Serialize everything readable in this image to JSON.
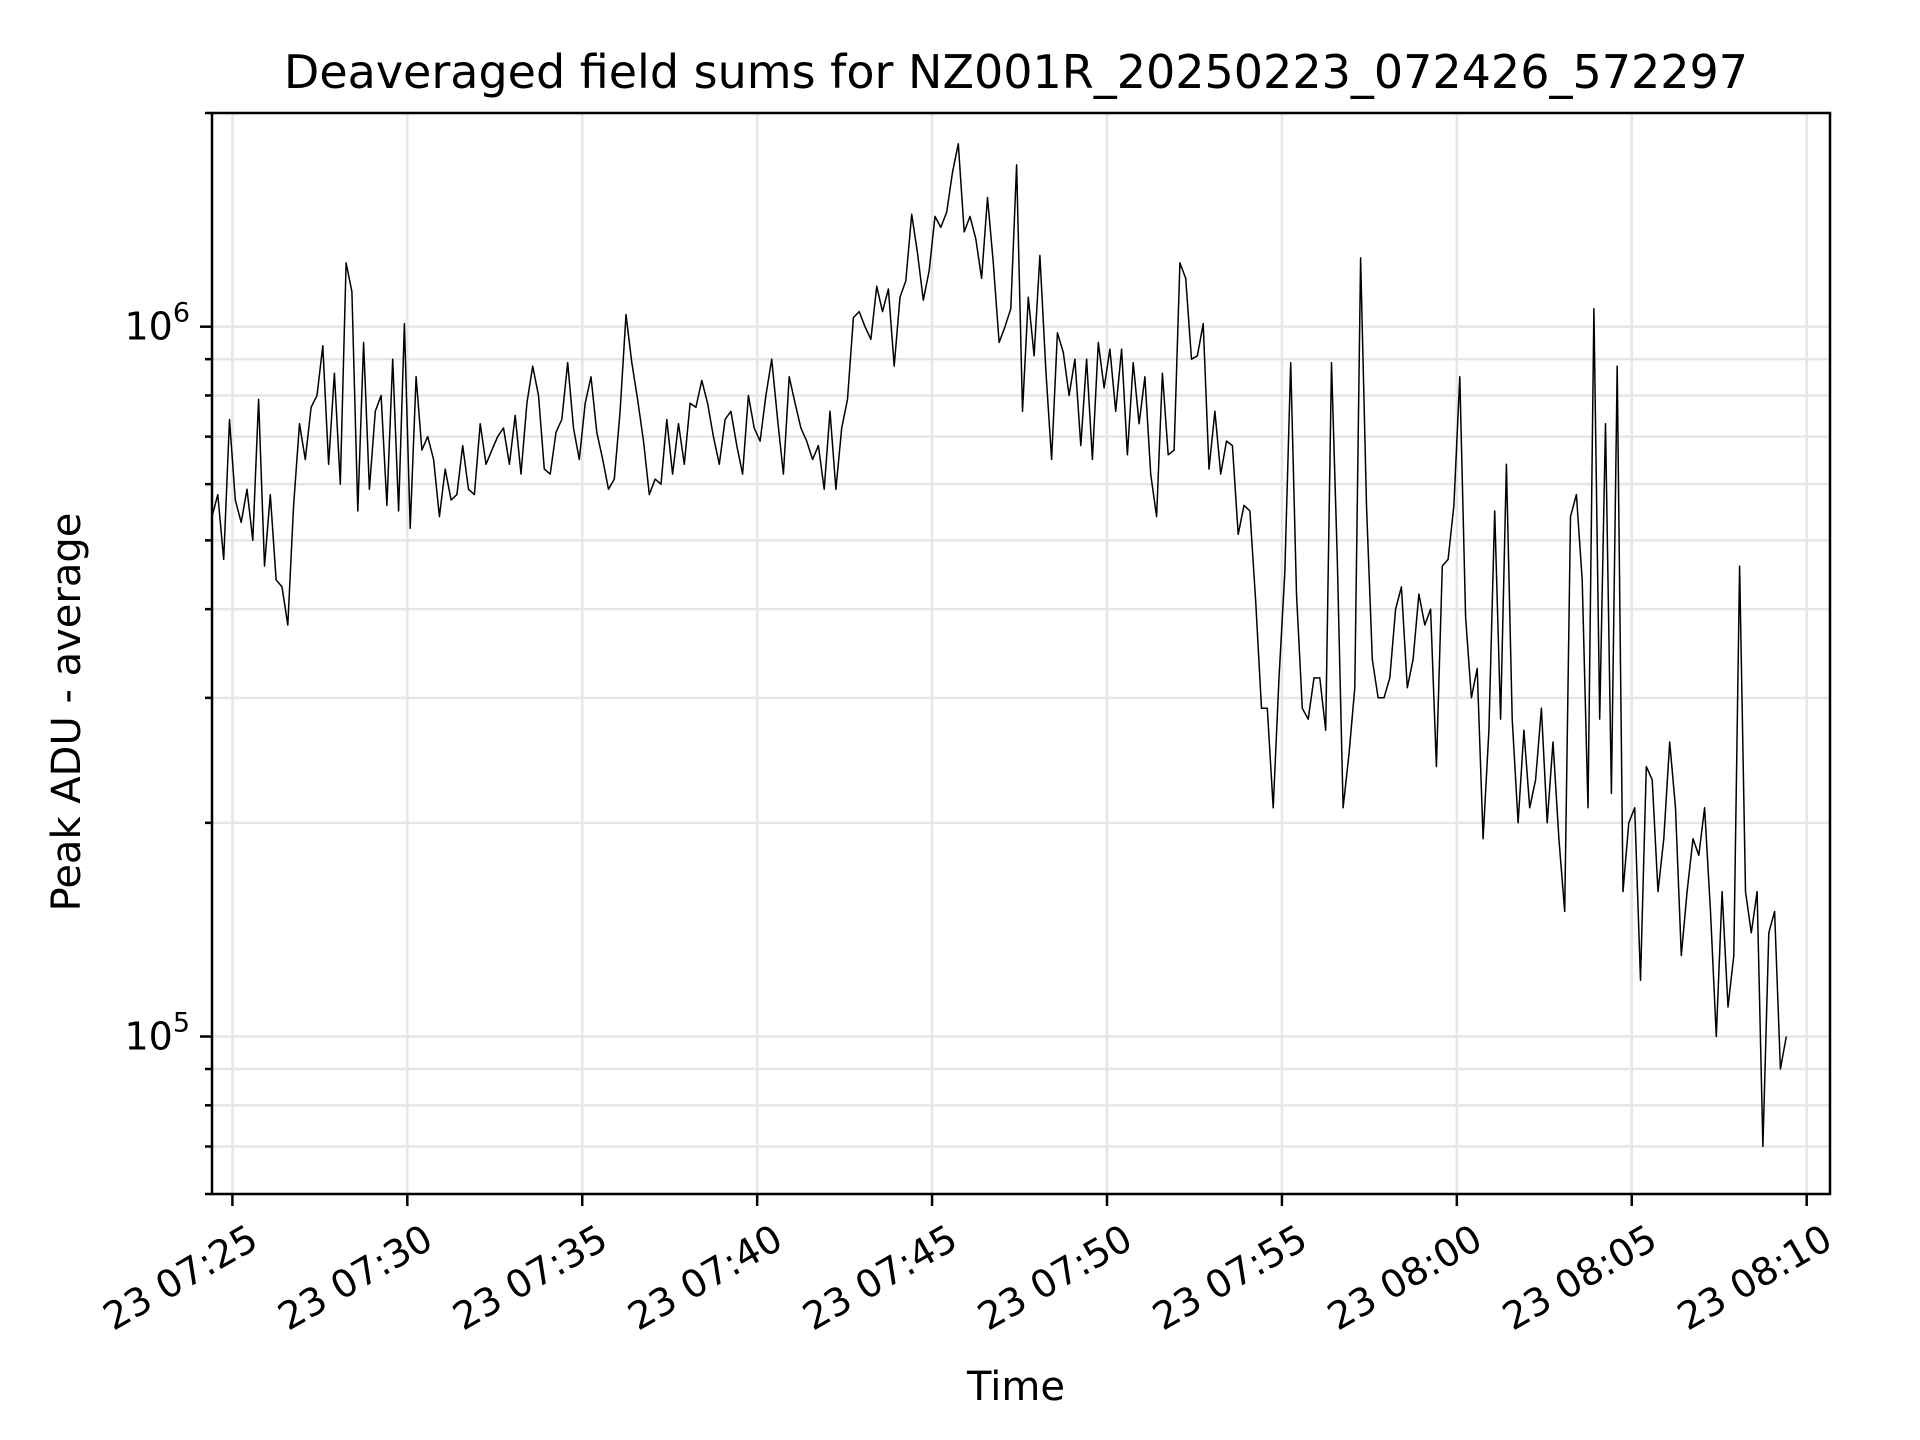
{
  "chart_data": {
    "type": "line",
    "title": "Deaveraged field sums for NZ001R_20250223_072426_572297",
    "xlabel": "Time",
    "ylabel": "Peak ADU - average",
    "y_scale": "log",
    "grid": true,
    "ylim": [
      60000,
      2000000
    ],
    "xlim": [
      "2025-02-23 07:24:25",
      "2025-02-23 08:10:40"
    ],
    "x_ticks": [
      "2025-02-23 07:25",
      "2025-02-23 07:30",
      "2025-02-23 07:35",
      "2025-02-23 07:40",
      "2025-02-23 07:45",
      "2025-02-23 07:50",
      "2025-02-23 07:55",
      "2025-02-23 08:00",
      "2025-02-23 08:05",
      "2025-02-23 08:10"
    ],
    "x_tick_labels": [
      "23 07:25",
      "23 07:30",
      "23 07:35",
      "23 07:40",
      "23 07:45",
      "23 07:50",
      "23 07:55",
      "23 08:00",
      "23 08:05",
      "23 08:10"
    ],
    "y_tick_labels": [
      {
        "value": 100000,
        "base": "10",
        "exp": "5"
      },
      {
        "value": 1000000,
        "base": "10",
        "exp": "6"
      }
    ],
    "series": [
      {
        "color": "#000000",
        "points": [
          [
            "07:24:25",
            540000
          ],
          [
            "07:24:35",
            580000
          ],
          [
            "07:24:45",
            470000
          ],
          [
            "07:24:55",
            740000
          ],
          [
            "07:25:05",
            570000
          ],
          [
            "07:25:15",
            530000
          ],
          [
            "07:25:25",
            590000
          ],
          [
            "07:25:35",
            500000
          ],
          [
            "07:25:45",
            790000
          ],
          [
            "07:25:55",
            460000
          ],
          [
            "07:26:05",
            580000
          ],
          [
            "07:26:15",
            440000
          ],
          [
            "07:26:25",
            430000
          ],
          [
            "07:26:35",
            380000
          ],
          [
            "07:26:45",
            560000
          ],
          [
            "07:26:55",
            730000
          ],
          [
            "07:27:05",
            650000
          ],
          [
            "07:27:15",
            770000
          ],
          [
            "07:27:25",
            800000
          ],
          [
            "07:27:35",
            940000
          ],
          [
            "07:27:45",
            640000
          ],
          [
            "07:27:55",
            860000
          ],
          [
            "07:28:05",
            600000
          ],
          [
            "07:28:15",
            1230000
          ],
          [
            "07:28:25",
            1120000
          ],
          [
            "07:28:35",
            550000
          ],
          [
            "07:28:45",
            950000
          ],
          [
            "07:28:55",
            590000
          ],
          [
            "07:29:05",
            760000
          ],
          [
            "07:29:15",
            800000
          ],
          [
            "07:29:25",
            560000
          ],
          [
            "07:29:35",
            900000
          ],
          [
            "07:29:45",
            550000
          ],
          [
            "07:29:55",
            1010000
          ],
          [
            "07:30:05",
            520000
          ],
          [
            "07:30:15",
            850000
          ],
          [
            "07:30:25",
            670000
          ],
          [
            "07:30:35",
            700000
          ],
          [
            "07:30:45",
            650000
          ],
          [
            "07:30:55",
            540000
          ],
          [
            "07:31:05",
            630000
          ],
          [
            "07:31:15",
            570000
          ],
          [
            "07:31:25",
            580000
          ],
          [
            "07:31:35",
            680000
          ],
          [
            "07:31:45",
            590000
          ],
          [
            "07:31:55",
            580000
          ],
          [
            "07:32:05",
            730000
          ],
          [
            "07:32:15",
            640000
          ],
          [
            "07:32:25",
            670000
          ],
          [
            "07:32:35",
            700000
          ],
          [
            "07:32:45",
            720000
          ],
          [
            "07:32:55",
            640000
          ],
          [
            "07:33:05",
            750000
          ],
          [
            "07:33:15",
            620000
          ],
          [
            "07:33:25",
            780000
          ],
          [
            "07:33:35",
            880000
          ],
          [
            "07:33:45",
            800000
          ],
          [
            "07:33:55",
            630000
          ],
          [
            "07:34:05",
            620000
          ],
          [
            "07:34:15",
            710000
          ],
          [
            "07:34:25",
            740000
          ],
          [
            "07:34:35",
            890000
          ],
          [
            "07:34:45",
            720000
          ],
          [
            "07:34:55",
            650000
          ],
          [
            "07:35:05",
            780000
          ],
          [
            "07:35:15",
            850000
          ],
          [
            "07:35:25",
            710000
          ],
          [
            "07:35:35",
            650000
          ],
          [
            "07:35:45",
            590000
          ],
          [
            "07:35:55",
            610000
          ],
          [
            "07:36:05",
            760000
          ],
          [
            "07:36:15",
            1040000
          ],
          [
            "07:36:25",
            890000
          ],
          [
            "07:36:35",
            790000
          ],
          [
            "07:36:45",
            690000
          ],
          [
            "07:36:55",
            580000
          ],
          [
            "07:37:05",
            610000
          ],
          [
            "07:37:15",
            600000
          ],
          [
            "07:37:25",
            740000
          ],
          [
            "07:37:35",
            620000
          ],
          [
            "07:37:45",
            730000
          ],
          [
            "07:37:55",
            640000
          ],
          [
            "07:38:05",
            780000
          ],
          [
            "07:38:15",
            770000
          ],
          [
            "07:38:25",
            840000
          ],
          [
            "07:38:35",
            780000
          ],
          [
            "07:38:45",
            700000
          ],
          [
            "07:38:55",
            640000
          ],
          [
            "07:39:05",
            740000
          ],
          [
            "07:39:15",
            760000
          ],
          [
            "07:39:25",
            680000
          ],
          [
            "07:39:35",
            620000
          ],
          [
            "07:39:45",
            800000
          ],
          [
            "07:39:55",
            720000
          ],
          [
            "07:40:05",
            690000
          ],
          [
            "07:40:15",
            800000
          ],
          [
            "07:40:25",
            900000
          ],
          [
            "07:40:35",
            740000
          ],
          [
            "07:40:45",
            620000
          ],
          [
            "07:40:55",
            850000
          ],
          [
            "07:41:05",
            780000
          ],
          [
            "07:41:15",
            720000
          ],
          [
            "07:41:25",
            690000
          ],
          [
            "07:41:35",
            650000
          ],
          [
            "07:41:45",
            680000
          ],
          [
            "07:41:55",
            590000
          ],
          [
            "07:42:05",
            760000
          ],
          [
            "07:42:15",
            590000
          ],
          [
            "07:42:25",
            720000
          ],
          [
            "07:42:35",
            790000
          ],
          [
            "07:42:45",
            1030000
          ],
          [
            "07:42:55",
            1050000
          ],
          [
            "07:43:05",
            1000000
          ],
          [
            "07:43:15",
            960000
          ],
          [
            "07:43:25",
            1140000
          ],
          [
            "07:43:35",
            1050000
          ],
          [
            "07:43:45",
            1130000
          ],
          [
            "07:43:55",
            880000
          ],
          [
            "07:44:05",
            1100000
          ],
          [
            "07:44:15",
            1160000
          ],
          [
            "07:44:25",
            1440000
          ],
          [
            "07:44:35",
            1270000
          ],
          [
            "07:44:45",
            1090000
          ],
          [
            "07:44:55",
            1200000
          ],
          [
            "07:45:05",
            1430000
          ],
          [
            "07:45:15",
            1380000
          ],
          [
            "07:45:25",
            1450000
          ],
          [
            "07:45:35",
            1650000
          ],
          [
            "07:45:45",
            1810000
          ],
          [
            "07:45:55",
            1360000
          ],
          [
            "07:46:05",
            1430000
          ],
          [
            "07:46:15",
            1330000
          ],
          [
            "07:46:25",
            1170000
          ],
          [
            "07:46:35",
            1520000
          ],
          [
            "07:46:45",
            1230000
          ],
          [
            "07:46:55",
            950000
          ],
          [
            "07:47:05",
            1000000
          ],
          [
            "07:47:15",
            1060000
          ],
          [
            "07:47:25",
            1690000
          ],
          [
            "07:47:35",
            760000
          ],
          [
            "07:47:45",
            1100000
          ],
          [
            "07:47:55",
            910000
          ],
          [
            "07:48:05",
            1260000
          ],
          [
            "07:48:15",
            870000
          ],
          [
            "07:48:25",
            650000
          ],
          [
            "07:48:35",
            980000
          ],
          [
            "07:48:45",
            920000
          ],
          [
            "07:48:55",
            800000
          ],
          [
            "07:49:05",
            900000
          ],
          [
            "07:49:15",
            680000
          ],
          [
            "07:49:25",
            900000
          ],
          [
            "07:49:35",
            650000
          ],
          [
            "07:49:45",
            950000
          ],
          [
            "07:49:55",
            820000
          ],
          [
            "07:50:05",
            930000
          ],
          [
            "07:50:15",
            760000
          ],
          [
            "07:50:25",
            930000
          ],
          [
            "07:50:35",
            660000
          ],
          [
            "07:50:45",
            890000
          ],
          [
            "07:50:55",
            730000
          ],
          [
            "07:51:05",
            850000
          ],
          [
            "07:51:15",
            620000
          ],
          [
            "07:51:25",
            540000
          ],
          [
            "07:51:35",
            860000
          ],
          [
            "07:51:45",
            660000
          ],
          [
            "07:51:55",
            670000
          ],
          [
            "07:52:05",
            1230000
          ],
          [
            "07:52:15",
            1170000
          ],
          [
            "07:52:25",
            900000
          ],
          [
            "07:52:35",
            910000
          ],
          [
            "07:52:45",
            1010000
          ],
          [
            "07:52:55",
            630000
          ],
          [
            "07:53:05",
            760000
          ],
          [
            "07:53:15",
            620000
          ],
          [
            "07:53:25",
            690000
          ],
          [
            "07:53:35",
            680000
          ],
          [
            "07:53:45",
            510000
          ],
          [
            "07:53:55",
            560000
          ],
          [
            "07:54:05",
            550000
          ],
          [
            "07:54:15",
            410000
          ],
          [
            "07:54:25",
            290000
          ],
          [
            "07:54:35",
            290000
          ],
          [
            "07:54:45",
            210000
          ],
          [
            "07:54:55",
            320000
          ],
          [
            "07:55:05",
            450000
          ],
          [
            "07:55:15",
            890000
          ],
          [
            "07:55:25",
            420000
          ],
          [
            "07:55:35",
            290000
          ],
          [
            "07:55:45",
            280000
          ],
          [
            "07:55:55",
            320000
          ],
          [
            "07:56:05",
            320000
          ],
          [
            "07:56:15",
            270000
          ],
          [
            "07:56:25",
            890000
          ],
          [
            "07:56:35",
            470000
          ],
          [
            "07:56:45",
            210000
          ],
          [
            "07:56:55",
            250000
          ],
          [
            "07:57:05",
            310000
          ],
          [
            "07:57:15",
            1250000
          ],
          [
            "07:57:25",
            560000
          ],
          [
            "07:57:35",
            340000
          ],
          [
            "07:57:45",
            300000
          ],
          [
            "07:57:55",
            300000
          ],
          [
            "07:58:05",
            320000
          ],
          [
            "07:58:15",
            400000
          ],
          [
            "07:58:25",
            430000
          ],
          [
            "07:58:35",
            310000
          ],
          [
            "07:58:45",
            340000
          ],
          [
            "07:58:55",
            420000
          ],
          [
            "07:59:05",
            380000
          ],
          [
            "07:59:15",
            400000
          ],
          [
            "07:59:25",
            240000
          ],
          [
            "07:59:35",
            460000
          ],
          [
            "07:59:45",
            470000
          ],
          [
            "07:59:55",
            560000
          ],
          [
            "08:00:05",
            850000
          ],
          [
            "08:00:15",
            390000
          ],
          [
            "08:00:25",
            300000
          ],
          [
            "08:00:35",
            330000
          ],
          [
            "08:00:45",
            190000
          ],
          [
            "08:00:55",
            270000
          ],
          [
            "08:01:05",
            550000
          ],
          [
            "08:01:15",
            280000
          ],
          [
            "08:01:25",
            640000
          ],
          [
            "08:01:35",
            280000
          ],
          [
            "08:01:45",
            200000
          ],
          [
            "08:01:55",
            270000
          ],
          [
            "08:02:05",
            210000
          ],
          [
            "08:02:15",
            230000
          ],
          [
            "08:02:25",
            290000
          ],
          [
            "08:02:35",
            200000
          ],
          [
            "08:02:45",
            260000
          ],
          [
            "08:02:55",
            190000
          ],
          [
            "08:03:05",
            150000
          ],
          [
            "08:03:15",
            540000
          ],
          [
            "08:03:25",
            580000
          ],
          [
            "08:03:35",
            440000
          ],
          [
            "08:03:45",
            210000
          ],
          [
            "08:03:55",
            1060000
          ],
          [
            "08:04:05",
            280000
          ],
          [
            "08:04:15",
            730000
          ],
          [
            "08:04:25",
            220000
          ],
          [
            "08:04:35",
            880000
          ],
          [
            "08:04:45",
            160000
          ],
          [
            "08:04:55",
            200000
          ],
          [
            "08:05:05",
            210000
          ],
          [
            "08:05:15",
            120000
          ],
          [
            "08:05:25",
            240000
          ],
          [
            "08:05:35",
            230000
          ],
          [
            "08:05:45",
            160000
          ],
          [
            "08:05:55",
            190000
          ],
          [
            "08:06:05",
            260000
          ],
          [
            "08:06:15",
            210000
          ],
          [
            "08:06:25",
            130000
          ],
          [
            "08:06:35",
            160000
          ],
          [
            "08:06:45",
            190000
          ],
          [
            "08:06:55",
            180000
          ],
          [
            "08:07:05",
            210000
          ],
          [
            "08:07:15",
            150000
          ],
          [
            "08:07:25",
            100000
          ],
          [
            "08:07:35",
            160000
          ],
          [
            "08:07:45",
            110000
          ],
          [
            "08:07:55",
            130000
          ],
          [
            "08:08:05",
            460000
          ],
          [
            "08:08:15",
            160000
          ],
          [
            "08:08:25",
            140000
          ],
          [
            "08:08:35",
            160000
          ],
          [
            "08:08:45",
            70000
          ],
          [
            "08:08:55",
            140000
          ],
          [
            "08:09:05",
            150000
          ],
          [
            "08:09:15",
            90000
          ],
          [
            "08:09:25",
            100000
          ]
        ]
      }
    ]
  }
}
